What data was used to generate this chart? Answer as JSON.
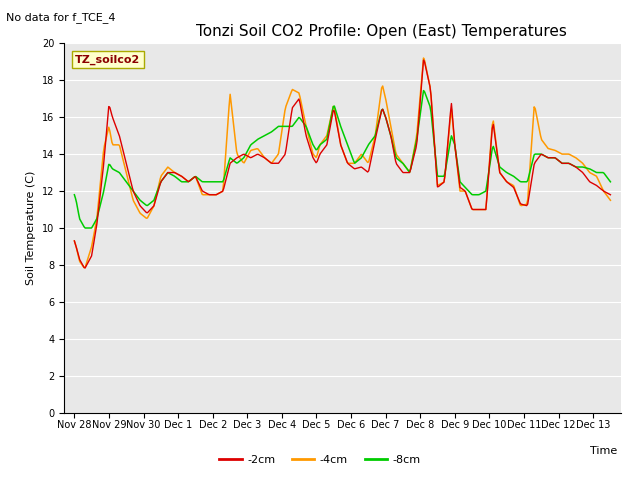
{
  "title": "Tonzi Soil CO2 Profile: Open (East) Temperatures",
  "subtitle": "No data for f_TCE_4",
  "ylabel": "Soil Temperature (C)",
  "xlabel": "Time",
  "legend_label": "TZ_soilco2",
  "ylim": [
    0,
    20
  ],
  "yticks": [
    0,
    2,
    4,
    6,
    8,
    10,
    12,
    14,
    16,
    18,
    20
  ],
  "fig_bg_color": "#ffffff",
  "plot_bg_color": "#e8e8e8",
  "line_colors": {
    "m2cm": "#dd0000",
    "m4cm": "#ff9900",
    "m8cm": "#00cc00"
  },
  "legend_entries": [
    "-2cm",
    "-4cm",
    "-8cm"
  ],
  "xtick_labels": [
    "Nov 28",
    "Nov 29",
    "Nov 30",
    "Dec 1",
    "Dec 2",
    "Dec 3",
    "Dec 4",
    "Dec 5",
    "Dec 6",
    "Dec 7",
    "Dec 8",
    "Dec 9",
    "Dec 10",
    "Dec 11",
    "Dec 12",
    "Dec 13"
  ],
  "title_fontsize": 11,
  "subtitle_fontsize": 8,
  "axis_label_fontsize": 8,
  "tick_fontsize": 7,
  "legend_fontsize": 8
}
